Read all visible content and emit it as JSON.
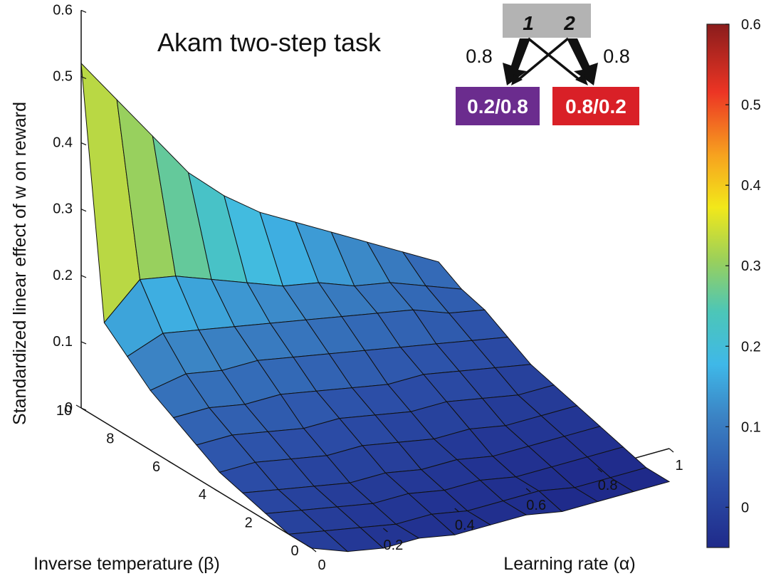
{
  "chart_data": {
    "type": "surface3d",
    "title": "Akam two-step task",
    "xlabel": "Learning rate (α)",
    "ylabel": "Inverse temperature (β)",
    "zlabel": "Standardized linear effect of w on reward",
    "x_ticks": [
      "0",
      "0.2",
      "0.4",
      "0.6",
      "0.8",
      "1"
    ],
    "y_ticks": [
      "0",
      "2",
      "4",
      "6",
      "8",
      "10"
    ],
    "z_ticks": [
      "0",
      "0.1",
      "0.2",
      "0.3",
      "0.4",
      "0.5",
      "0.6"
    ],
    "xlim": [
      0,
      1
    ],
    "ylim": [
      0,
      10
    ],
    "zlim": [
      0,
      0.6
    ],
    "colorbar": {
      "min": -0.05,
      "max": 0.6,
      "ticks": [
        "0",
        "0.1",
        "0.2",
        "0.3",
        "0.4",
        "0.5",
        "0.6"
      ],
      "colormap": "jet"
    },
    "alpha": [
      0,
      0.1,
      0.2,
      0.3,
      0.4,
      0.5,
      0.6,
      0.7,
      0.8,
      0.9,
      1.0
    ],
    "beta": [
      0,
      1,
      2,
      3,
      4,
      5,
      6,
      7,
      8,
      9,
      10
    ],
    "z": [
      [
        0.0,
        -0.02,
        -0.03,
        -0.03,
        -0.04,
        -0.04,
        -0.04,
        -0.05,
        -0.05,
        -0.05,
        -0.05
      ],
      [
        0.0,
        -0.01,
        -0.02,
        -0.03,
        -0.03,
        -0.04,
        -0.04,
        -0.04,
        -0.05,
        -0.05,
        -0.05
      ],
      [
        0.01,
        0.0,
        -0.01,
        -0.02,
        -0.02,
        -0.03,
        -0.03,
        -0.04,
        -0.04,
        -0.04,
        -0.04
      ],
      [
        0.02,
        0.01,
        0.0,
        -0.01,
        -0.01,
        -0.02,
        -0.02,
        -0.03,
        -0.03,
        -0.03,
        -0.03
      ],
      [
        0.03,
        0.03,
        0.02,
        0.01,
        0.01,
        0.0,
        -0.01,
        -0.01,
        -0.02,
        -0.02,
        -0.02
      ],
      [
        0.05,
        0.05,
        0.04,
        0.03,
        0.03,
        0.02,
        0.01,
        0.01,
        0.0,
        -0.01,
        -0.01
      ],
      [
        0.07,
        0.07,
        0.06,
        0.06,
        0.05,
        0.04,
        0.03,
        0.03,
        0.02,
        0.01,
        0.0
      ],
      [
        0.09,
        0.1,
        0.09,
        0.09,
        0.08,
        0.07,
        0.06,
        0.05,
        0.04,
        0.03,
        0.02
      ],
      [
        0.12,
        0.14,
        0.13,
        0.12,
        0.11,
        0.1,
        0.09,
        0.08,
        0.07,
        0.05,
        0.04
      ],
      [
        0.15,
        0.2,
        0.19,
        0.17,
        0.15,
        0.13,
        0.12,
        0.1,
        0.09,
        0.07,
        0.05
      ],
      [
        0.52,
        0.45,
        0.38,
        0.31,
        0.26,
        0.22,
        0.19,
        0.16,
        0.13,
        0.1,
        0.07
      ]
    ],
    "z_row_index": "beta",
    "z_col_index": "alpha"
  },
  "inset": {
    "top_labels": [
      "1",
      "2"
    ],
    "prob_left": "0.8",
    "prob_right": "0.8",
    "box_left": {
      "label": "0.2/0.8",
      "color": "#6b2c8e"
    },
    "box_right": {
      "label": "0.8/0.2",
      "color": "#d92027"
    },
    "top_box_color": "#b3b3b3"
  }
}
